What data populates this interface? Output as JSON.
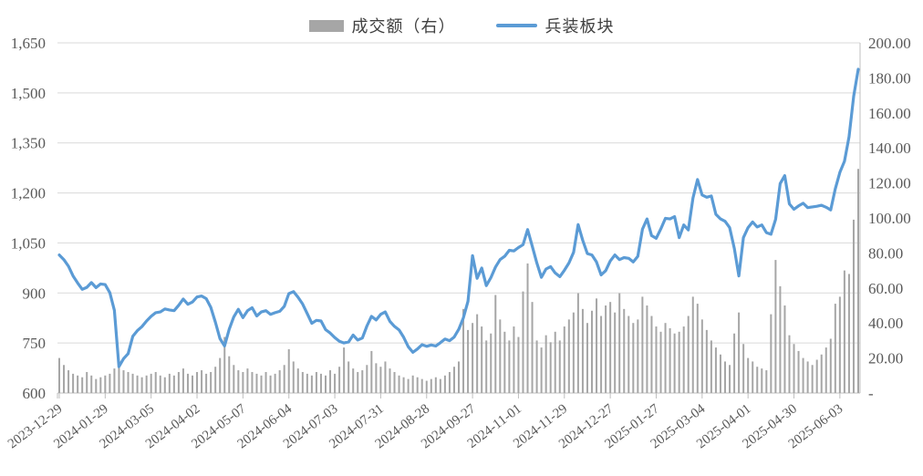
{
  "legend": {
    "volume": {
      "label": "成交额（右）",
      "swatch": "bar",
      "color": "#A6A6A6"
    },
    "index": {
      "label": "兵装板块",
      "swatch": "line",
      "color": "#5B9BD5"
    }
  },
  "chart_data": {
    "type": "combo",
    "title": "",
    "legend_position": "top",
    "grid": true,
    "grid_color": "#D9D9D9",
    "axis_color": "#BFBFBF",
    "label_color": "#595959",
    "x_description": "Trading days 2023-12-29 to late June 2025, one sample per 2 trading days",
    "x_tick_labels": [
      "2023-12-29",
      "2024-01-29",
      "2024-03-05",
      "2024-04-02",
      "2024-05-07",
      "2024-06-04",
      "2024-07-03",
      "2024-07-31",
      "2024-08-28",
      "2024-09-27",
      "2024-11-01",
      "2024-11-29",
      "2024-12-27",
      "2025-01-27",
      "2025-03-04",
      "2025-04-01",
      "2025-04-30",
      "2025-06-03"
    ],
    "x_tick_series_indexes": [
      0,
      10,
      20,
      30,
      40,
      50,
      60,
      70,
      80,
      90,
      100,
      110,
      120,
      130,
      140,
      150,
      160,
      170
    ],
    "left_axis": {
      "series": "兵装板块",
      "min": 600,
      "max": 1650,
      "step": 150,
      "tick_labels": [
        "600",
        "750",
        "900",
        "1,050",
        "1,200",
        "1,350",
        "1,500",
        "1,650"
      ]
    },
    "right_axis": {
      "series": "成交额（右）",
      "min": 0,
      "max": 200,
      "step": 20,
      "tick_labels": [
        "-",
        "20.00",
        "40.00",
        "60.00",
        "80.00",
        "100.00",
        "120.00",
        "140.00",
        "160.00",
        "180.00",
        "200.00"
      ]
    },
    "series": [
      {
        "name": "兵装板块",
        "type": "line",
        "axis": "left",
        "color": "#5B9BD5",
        "values": [
          1014,
          1000,
          980,
          951,
          930,
          911,
          917,
          931,
          916,
          927,
          925,
          901,
          848,
          679,
          703,
          718,
          770,
          787,
          799,
          816,
          830,
          841,
          843,
          852,
          849,
          847,
          863,
          882,
          866,
          873,
          888,
          891,
          883,
          857,
          812,
          763,
          741,
          791,
          828,
          851,
          826,
          847,
          856,
          831,
          843,
          847,
          836,
          841,
          845,
          860,
          898,
          904,
          887,
          867,
          838,
          809,
          818,
          816,
          790,
          780,
          766,
          755,
          750,
          753,
          774,
          759,
          765,
          801,
          830,
          819,
          836,
          843,
          815,
          800,
          789,
          767,
          739,
          722,
          732,
          745,
          740,
          744,
          741,
          751,
          762,
          757,
          768,
          791,
          825,
          875,
          1012,
          944,
          975,
          922,
          946,
          978,
          1000,
          1010,
          1028,
          1026,
          1036,
          1045,
          1090,
          1040,
          990,
          947,
          972,
          979,
          960,
          949,
          968,
          990,
          1022,
          1105,
          1058,
          1018,
          1014,
          993,
          954,
          967,
          996,
          1014,
          1000,
          1006,
          1004,
          993,
          1010,
          1091,
          1122,
          1072,
          1064,
          1092,
          1124,
          1122,
          1129,
          1066,
          1104,
          1089,
          1185,
          1240,
          1194,
          1187,
          1191,
          1136,
          1122,
          1115,
          1096,
          1034,
          951,
          1066,
          1096,
          1113,
          1098,
          1104,
          1081,
          1076,
          1121,
          1228,
          1252,
          1167,
          1151,
          1161,
          1169,
          1156,
          1158,
          1160,
          1163,
          1157,
          1149,
          1212,
          1262,
          1295,
          1368,
          1490,
          1571
        ]
      },
      {
        "name": "成交额（右）",
        "type": "bar",
        "axis": "right",
        "color": "#A6A6A6",
        "values": [
          20,
          16,
          13,
          11,
          10,
          9,
          12,
          10,
          8,
          9,
          10,
          11,
          14,
          17,
          13,
          12,
          11,
          10,
          9,
          10,
          11,
          12,
          10,
          9,
          11,
          10,
          12,
          14,
          11,
          10,
          12,
          13,
          11,
          12,
          15,
          20,
          32,
          21,
          16,
          13,
          12,
          14,
          12,
          11,
          10,
          12,
          10,
          11,
          13,
          16,
          25,
          18,
          14,
          12,
          11,
          10,
          12,
          11,
          10,
          13,
          11,
          15,
          26,
          18,
          14,
          12,
          13,
          16,
          24,
          17,
          15,
          18,
          14,
          12,
          10,
          9,
          8,
          10,
          9,
          8,
          7,
          8,
          9,
          8,
          10,
          12,
          15,
          18,
          48,
          36,
          40,
          45,
          38,
          30,
          34,
          56,
          42,
          35,
          30,
          38,
          32,
          58,
          74,
          52,
          30,
          26,
          33,
          29,
          35,
          30,
          38,
          42,
          46,
          57,
          48,
          40,
          47,
          54,
          44,
          50,
          52,
          46,
          57,
          48,
          44,
          40,
          42,
          55,
          50,
          44,
          38,
          35,
          40,
          37,
          34,
          35,
          38,
          44,
          55,
          51,
          42,
          36,
          30,
          26,
          22,
          18,
          16,
          34,
          46,
          28,
          20,
          18,
          15,
          14,
          13,
          45,
          76,
          61,
          50,
          33,
          28,
          24,
          20,
          18,
          16,
          19,
          22,
          26,
          31,
          51,
          55,
          70,
          68,
          99,
          128
        ]
      }
    ]
  }
}
